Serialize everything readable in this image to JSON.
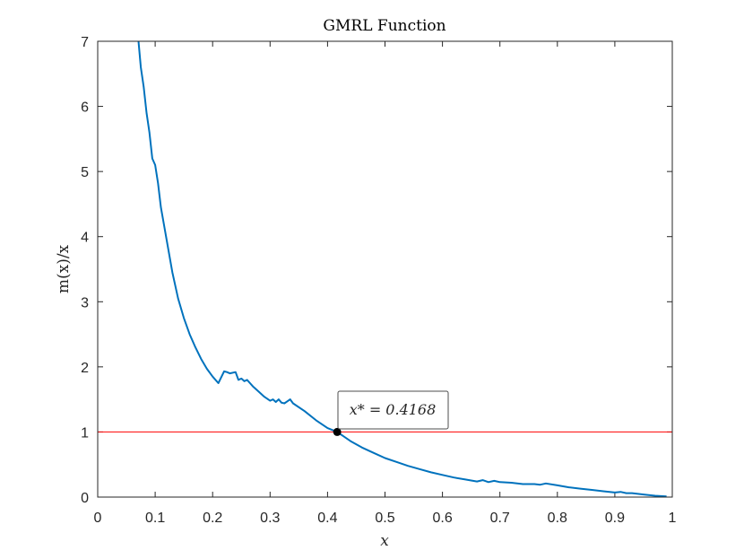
{
  "chart_data": {
    "type": "line",
    "title": "GMRL Function",
    "xlabel": "x",
    "ylabel": "m(x)/x",
    "xlim": [
      0,
      1
    ],
    "ylim": [
      0,
      7
    ],
    "xticks": [
      0,
      0.1,
      0.2,
      0.3,
      0.4,
      0.5,
      0.6,
      0.7,
      0.8,
      0.9,
      1
    ],
    "xtick_labels": [
      "0",
      "0.1",
      "0.2",
      "0.3",
      "0.4",
      "0.5",
      "0.6",
      "0.7",
      "0.8",
      "0.9",
      "1"
    ],
    "yticks": [
      0,
      1,
      2,
      3,
      4,
      5,
      6,
      7
    ],
    "ytick_labels": [
      "0",
      "1",
      "2",
      "3",
      "4",
      "5",
      "6",
      "7"
    ],
    "grid": false,
    "box": true,
    "series": [
      {
        "color": "#0072BD",
        "x": [
          0.071,
          0.075,
          0.08,
          0.085,
          0.09,
          0.095,
          0.1,
          0.105,
          0.11,
          0.12,
          0.13,
          0.14,
          0.15,
          0.16,
          0.17,
          0.18,
          0.19,
          0.2,
          0.21,
          0.22,
          0.225,
          0.23,
          0.24,
          0.245,
          0.25,
          0.255,
          0.26,
          0.265,
          0.27,
          0.28,
          0.29,
          0.3,
          0.305,
          0.31,
          0.315,
          0.32,
          0.325,
          0.33,
          0.335,
          0.34,
          0.36,
          0.38,
          0.4,
          0.4168,
          0.44,
          0.46,
          0.48,
          0.5,
          0.52,
          0.54,
          0.56,
          0.58,
          0.6,
          0.62,
          0.64,
          0.66,
          0.67,
          0.68,
          0.69,
          0.7,
          0.72,
          0.74,
          0.76,
          0.77,
          0.78,
          0.8,
          0.82,
          0.84,
          0.86,
          0.88,
          0.9,
          0.91,
          0.92,
          0.93,
          0.95,
          0.97,
          0.99
        ],
        "y": [
          7.0,
          6.6,
          6.3,
          5.9,
          5.6,
          5.2,
          5.1,
          4.82,
          4.45,
          3.95,
          3.45,
          3.05,
          2.75,
          2.5,
          2.3,
          2.12,
          1.97,
          1.85,
          1.75,
          1.93,
          1.92,
          1.9,
          1.92,
          1.8,
          1.82,
          1.78,
          1.8,
          1.75,
          1.7,
          1.62,
          1.54,
          1.48,
          1.5,
          1.46,
          1.5,
          1.45,
          1.44,
          1.47,
          1.5,
          1.44,
          1.32,
          1.18,
          1.06,
          1.0,
          0.86,
          0.76,
          0.68,
          0.6,
          0.54,
          0.48,
          0.43,
          0.38,
          0.34,
          0.3,
          0.27,
          0.24,
          0.26,
          0.23,
          0.25,
          0.23,
          0.22,
          0.2,
          0.2,
          0.19,
          0.21,
          0.18,
          0.15,
          0.13,
          0.11,
          0.09,
          0.07,
          0.08,
          0.06,
          0.06,
          0.04,
          0.02,
          0.01
        ]
      }
    ],
    "reference_line": {
      "y": 1,
      "color": "#FF0000"
    },
    "marker": {
      "x": 0.4168,
      "y": 1,
      "color": "#000000"
    },
    "annotation": {
      "text": "x* = 0.4168"
    }
  }
}
